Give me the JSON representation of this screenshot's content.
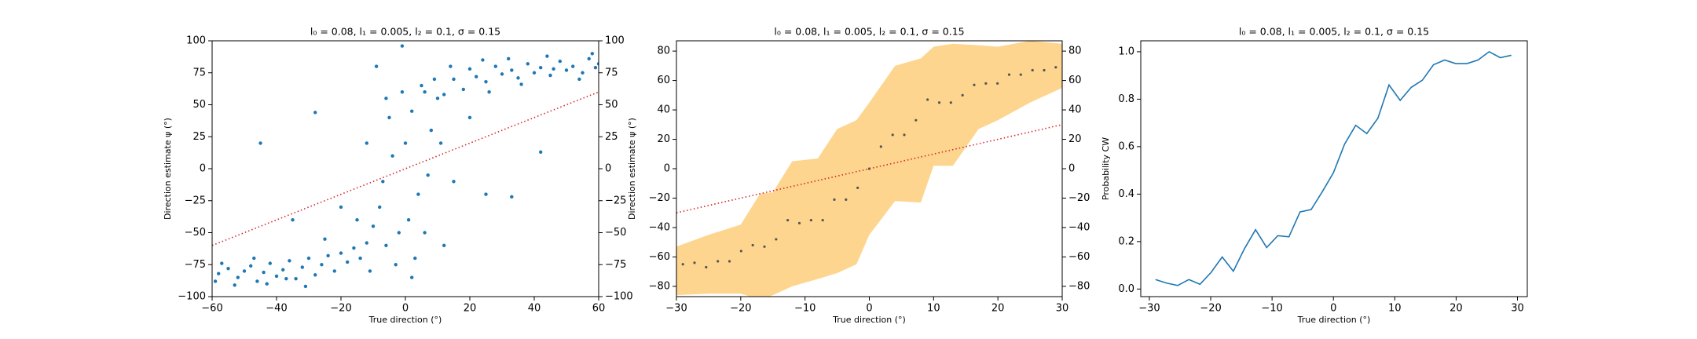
{
  "chart_data": [
    {
      "type": "scatter",
      "title": "l₀ = 0.08, l₁ = 0.005, l₂ = 0.1, σ = 0.15",
      "xlabel": "True direction (°)",
      "ylabel": "Direction estimate ψ (°)",
      "xlim": [
        -60,
        60
      ],
      "ylim": [
        -100,
        100
      ],
      "y2lim": [
        -100,
        100
      ],
      "xticks": [
        {
          "value": -60,
          "label": "−60"
        },
        {
          "value": -40,
          "label": "−40"
        },
        {
          "value": -20,
          "label": "−20"
        },
        0,
        20,
        40,
        60
      ],
      "yticks": [
        {
          "value": -100,
          "label": "−100"
        },
        {
          "value": -75,
          "label": "−75"
        },
        {
          "value": -50,
          "label": "−50"
        },
        {
          "value": -25,
          "label": "−25"
        },
        0,
        25,
        50,
        75,
        100
      ],
      "y2ticks": [
        {
          "value": -100,
          "label": "−100"
        },
        {
          "value": -75,
          "label": "−75"
        },
        {
          "value": -50,
          "label": "−50"
        },
        {
          "value": -25,
          "label": "−25"
        },
        0,
        25,
        50,
        75,
        100
      ],
      "color": "#1f77b4",
      "x": [
        -58,
        -55,
        -52,
        -50,
        -48,
        -46,
        -44,
        -42,
        -40,
        -38,
        -36,
        -34,
        -32,
        -30,
        -28,
        -26,
        -24,
        -22,
        -20,
        -18,
        -16,
        -14,
        -12,
        -59,
        -57,
        -53,
        -47,
        -43,
        -37,
        -31,
        15,
        18,
        20,
        22,
        25,
        28,
        30,
        33,
        35,
        38,
        40,
        42,
        45,
        48,
        50,
        52,
        55,
        57,
        59,
        60,
        12,
        14,
        24,
        36,
        44,
        54,
        58,
        26,
        46,
        32,
        -10,
        -8,
        -6,
        -4,
        -2,
        0,
        2,
        4,
        6,
        8,
        10,
        -5,
        3,
        -7,
        1,
        5,
        7,
        9,
        -3,
        -1,
        11,
        -12,
        -15,
        -20,
        -25,
        15,
        20,
        25,
        -9,
        -1,
        33,
        42,
        -45,
        -35,
        -28,
        12,
        -11,
        6,
        -6,
        2
      ],
      "values": [
        -82,
        -78,
        -85,
        -80,
        -76,
        -88,
        -81,
        -74,
        -84,
        -79,
        -72,
        -86,
        -77,
        -70,
        -83,
        -75,
        -68,
        -80,
        -66,
        -73,
        -62,
        -70,
        -58,
        -88,
        -74,
        -91,
        -70,
        -90,
        -86,
        -92,
        70,
        62,
        78,
        72,
        68,
        80,
        74,
        77,
        71,
        82,
        75,
        79,
        73,
        84,
        77,
        80,
        75,
        86,
        79,
        82,
        58,
        80,
        85,
        66,
        88,
        70,
        90,
        60,
        78,
        86,
        -45,
        -30,
        -60,
        10,
        -50,
        20,
        45,
        -20,
        60,
        30,
        55,
        40,
        -70,
        -10,
        -40,
        65,
        -5,
        70,
        -75,
        60,
        20,
        20,
        -40,
        -30,
        -55,
        -10,
        40,
        -20,
        80,
        96,
        -22,
        13,
        20,
        -40,
        44,
        -60,
        -80,
        -50,
        55,
        -85
      ],
      "reference_line": {
        "x": [
          -60,
          60
        ],
        "values": [
          -60,
          60
        ],
        "color": "#d62728"
      }
    },
    {
      "type": "scatter",
      "title": "l₀ = 0.08, l₁ = 0.005, l₂ = 0.1, σ = 0.15",
      "xlabel": "True direction (°)",
      "ylabel": "Direction estimate ψ (°)",
      "xlim": [
        -30,
        30
      ],
      "ylim": [
        -87,
        87
      ],
      "y2lim": [
        -87,
        87
      ],
      "xticks": [
        {
          "value": -30,
          "label": "−30"
        },
        {
          "value": -20,
          "label": "−20"
        },
        {
          "value": -10,
          "label": "−10"
        },
        0,
        10,
        20,
        30
      ],
      "yticks": [
        {
          "value": -80,
          "label": "−80"
        },
        {
          "value": -60,
          "label": "−60"
        },
        {
          "value": -40,
          "label": "−40"
        },
        {
          "value": -20,
          "label": "−20"
        },
        0,
        20,
        40,
        60,
        80
      ],
      "y2ticks": [
        {
          "value": -80,
          "label": "−80"
        },
        {
          "value": -60,
          "label": "−60"
        },
        {
          "value": -40,
          "label": "−40"
        },
        {
          "value": -20,
          "label": "−20"
        },
        0,
        20,
        40,
        60,
        80
      ],
      "color": "#555555",
      "x": [
        -29,
        -27.19,
        -25.38,
        -23.56,
        -21.75,
        -19.94,
        -18.13,
        -16.31,
        -14.5,
        -12.69,
        -10.88,
        -9.06,
        -7.25,
        -5.44,
        -3.63,
        -1.81,
        0,
        1.81,
        3.63,
        5.44,
        7.25,
        9.06,
        10.88,
        12.69,
        14.5,
        16.31,
        18.13,
        19.94,
        21.75,
        23.56,
        25.38,
        27.19,
        29
      ],
      "values": [
        -65,
        -64,
        -67,
        -63,
        -63,
        -56,
        -52,
        -53,
        -48,
        -35,
        -37,
        -35,
        -35,
        -21,
        -21,
        -13,
        0,
        15,
        23,
        23,
        33,
        47,
        45,
        45,
        50,
        57,
        58,
        58,
        64,
        64,
        67,
        67,
        69
      ],
      "band": {
        "color": "#fdd58f",
        "x": [
          -30,
          -25,
          -20,
          -17,
          -15,
          -12,
          -8,
          -5,
          -2,
          0,
          4,
          8,
          10,
          13,
          17,
          20,
          25,
          30
        ],
        "lower": [
          -86,
          -85,
          -85,
          -89,
          -86,
          -80,
          -75,
          -71,
          -65,
          -45,
          -22,
          -23,
          2,
          2,
          27,
          33,
          45,
          55
        ],
        "upper": [
          -53,
          -45,
          -38,
          -17,
          -16,
          5,
          7,
          27,
          33,
          45,
          70,
          75,
          83,
          85,
          84,
          83,
          87,
          85
        ]
      },
      "reference_line": {
        "x": [
          -30,
          30
        ],
        "values": [
          -30,
          30
        ],
        "color": "#d62728"
      }
    },
    {
      "type": "line",
      "title": "l₀ = 0.08, l₁ = 0.005, l₂ = 0.1, σ = 0.15",
      "xlabel": "True direction (°)",
      "ylabel": "Probability CW",
      "xlim": [
        -31.4,
        31.6
      ],
      "ylim": [
        -0.032,
        1.046
      ],
      "xticks": [
        {
          "value": -30,
          "label": "−30"
        },
        {
          "value": -20,
          "label": "−20"
        },
        {
          "value": -10,
          "label": "−10"
        },
        0,
        10,
        20,
        30
      ],
      "yticks": [
        {
          "value": 0,
          "label": "0.0"
        },
        0.2,
        0.4,
        0.6,
        0.8,
        {
          "value": 1,
          "label": "1.0"
        }
      ],
      "color": "#1f77b4",
      "x": [
        -29,
        -27.19,
        -25.38,
        -23.56,
        -21.75,
        -19.94,
        -18.13,
        -16.31,
        -14.5,
        -12.69,
        -10.88,
        -9.06,
        -7.25,
        -5.44,
        -3.63,
        -1.81,
        0,
        1.81,
        3.63,
        5.44,
        7.25,
        9.06,
        10.88,
        12.69,
        14.5,
        16.31,
        18.13,
        19.94,
        21.75,
        23.56,
        25.38,
        27.19,
        29
      ],
      "values": [
        0.04,
        0.025,
        0.015,
        0.04,
        0.02,
        0.07,
        0.135,
        0.075,
        0.17,
        0.25,
        0.175,
        0.225,
        0.22,
        0.325,
        0.335,
        0.41,
        0.49,
        0.61,
        0.69,
        0.655,
        0.72,
        0.86,
        0.795,
        0.85,
        0.88,
        0.945,
        0.965,
        0.95,
        0.95,
        0.965,
        1.0,
        0.975,
        0.985
      ]
    }
  ]
}
